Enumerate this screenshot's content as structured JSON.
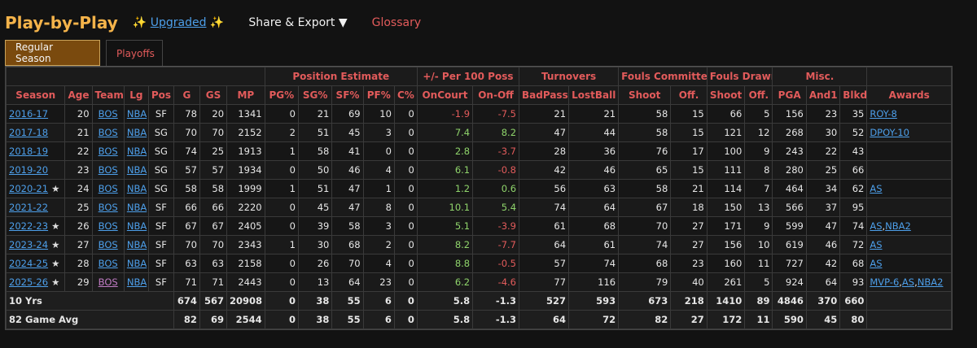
{
  "header": {
    "title": "Play-by-Play",
    "sparkle_left": "✨",
    "upgraded": "Upgraded",
    "sparkle_right": "✨",
    "share": "Share & Export ▼",
    "glossary": "Glossary"
  },
  "tabs": {
    "regular": "Regular Season",
    "playoffs": "Playoffs"
  },
  "groups": {
    "position": "Position Estimate",
    "plusminus": "+/- Per 100 Poss",
    "turnovers": "Turnovers",
    "fouls_committed": "Fouls Committed",
    "fouls_drawn": "Fouls Drawn",
    "misc": "Misc."
  },
  "columns": [
    "Season",
    "Age",
    "Team",
    "Lg",
    "Pos",
    "G",
    "GS",
    "MP",
    "PG%",
    "SG%",
    "SF%",
    "PF%",
    "C%",
    "OnCourt",
    "On-Off",
    "BadPass",
    "LostBall",
    "Shoot",
    "Off.",
    "Shoot",
    "Off.",
    "PGA",
    "And1",
    "Blkd",
    "Awards"
  ],
  "rows": [
    {
      "season": "2016-17",
      "star": "",
      "age": "20",
      "team": "BOS",
      "lg": "NBA",
      "pos": "SF",
      "g": "78",
      "gs": "20",
      "mp": "1341",
      "pg": "0",
      "sg": "21",
      "sf": "69",
      "pf": "10",
      "c": "0",
      "oncourt": "-1.9",
      "onoff": "-7.5",
      "badpass": "21",
      "lostball": "21",
      "fc_shoot": "58",
      "fc_off": "15",
      "fd_shoot": "66",
      "fd_off": "5",
      "pga": "156",
      "and1": "23",
      "blkd": "35",
      "awards": [
        "ROY-8"
      ]
    },
    {
      "season": "2017-18",
      "star": "",
      "age": "21",
      "team": "BOS",
      "lg": "NBA",
      "pos": "SG",
      "g": "70",
      "gs": "70",
      "mp": "2152",
      "pg": "2",
      "sg": "51",
      "sf": "45",
      "pf": "3",
      "c": "0",
      "oncourt": "7.4",
      "onoff": "8.2",
      "badpass": "47",
      "lostball": "44",
      "fc_shoot": "58",
      "fc_off": "15",
      "fd_shoot": "121",
      "fd_off": "12",
      "pga": "268",
      "and1": "30",
      "blkd": "52",
      "awards": [
        "DPOY-10"
      ]
    },
    {
      "season": "2018-19",
      "star": "",
      "age": "22",
      "team": "BOS",
      "lg": "NBA",
      "pos": "SG",
      "g": "74",
      "gs": "25",
      "mp": "1913",
      "pg": "1",
      "sg": "58",
      "sf": "41",
      "pf": "0",
      "c": "0",
      "oncourt": "2.8",
      "onoff": "-3.7",
      "badpass": "28",
      "lostball": "36",
      "fc_shoot": "76",
      "fc_off": "17",
      "fd_shoot": "100",
      "fd_off": "9",
      "pga": "243",
      "and1": "22",
      "blkd": "43",
      "awards": []
    },
    {
      "season": "2019-20",
      "star": "",
      "age": "23",
      "team": "BOS",
      "lg": "NBA",
      "pos": "SG",
      "g": "57",
      "gs": "57",
      "mp": "1934",
      "pg": "0",
      "sg": "50",
      "sf": "46",
      "pf": "4",
      "c": "0",
      "oncourt": "6.1",
      "onoff": "-0.8",
      "badpass": "42",
      "lostball": "46",
      "fc_shoot": "65",
      "fc_off": "15",
      "fd_shoot": "111",
      "fd_off": "8",
      "pga": "280",
      "and1": "25",
      "blkd": "66",
      "awards": []
    },
    {
      "season": "2020-21",
      "star": "★",
      "age": "24",
      "team": "BOS",
      "lg": "NBA",
      "pos": "SG",
      "g": "58",
      "gs": "58",
      "mp": "1999",
      "pg": "1",
      "sg": "51",
      "sf": "47",
      "pf": "1",
      "c": "0",
      "oncourt": "1.2",
      "onoff": "0.6",
      "badpass": "56",
      "lostball": "63",
      "fc_shoot": "58",
      "fc_off": "21",
      "fd_shoot": "114",
      "fd_off": "7",
      "pga": "464",
      "and1": "34",
      "blkd": "62",
      "awards": [
        "AS"
      ]
    },
    {
      "season": "2021-22",
      "star": "",
      "age": "25",
      "team": "BOS",
      "lg": "NBA",
      "pos": "SF",
      "g": "66",
      "gs": "66",
      "mp": "2220",
      "pg": "0",
      "sg": "45",
      "sf": "47",
      "pf": "8",
      "c": "0",
      "oncourt": "10.1",
      "onoff": "5.4",
      "badpass": "74",
      "lostball": "64",
      "fc_shoot": "67",
      "fc_off": "18",
      "fd_shoot": "150",
      "fd_off": "13",
      "pga": "566",
      "and1": "37",
      "blkd": "95",
      "awards": []
    },
    {
      "season": "2022-23",
      "star": "★",
      "age": "26",
      "team": "BOS",
      "lg": "NBA",
      "pos": "SF",
      "g": "67",
      "gs": "67",
      "mp": "2405",
      "pg": "0",
      "sg": "39",
      "sf": "58",
      "pf": "3",
      "c": "0",
      "oncourt": "5.1",
      "onoff": "-3.9",
      "badpass": "61",
      "lostball": "68",
      "fc_shoot": "70",
      "fc_off": "27",
      "fd_shoot": "171",
      "fd_off": "9",
      "pga": "599",
      "and1": "47",
      "blkd": "74",
      "awards": [
        "AS",
        "NBA2"
      ]
    },
    {
      "season": "2023-24",
      "star": "★",
      "age": "27",
      "team": "BOS",
      "lg": "NBA",
      "pos": "SF",
      "g": "70",
      "gs": "70",
      "mp": "2343",
      "pg": "1",
      "sg": "30",
      "sf": "68",
      "pf": "2",
      "c": "0",
      "oncourt": "8.2",
      "onoff": "-7.7",
      "badpass": "64",
      "lostball": "61",
      "fc_shoot": "74",
      "fc_off": "27",
      "fd_shoot": "156",
      "fd_off": "10",
      "pga": "619",
      "and1": "46",
      "blkd": "72",
      "awards": [
        "AS"
      ]
    },
    {
      "season": "2024-25",
      "star": "★",
      "age": "28",
      "team": "BOS",
      "lg": "NBA",
      "pos": "SF",
      "g": "63",
      "gs": "63",
      "mp": "2158",
      "pg": "0",
      "sg": "26",
      "sf": "70",
      "pf": "4",
      "c": "0",
      "oncourt": "8.8",
      "onoff": "-0.5",
      "badpass": "57",
      "lostball": "74",
      "fc_shoot": "68",
      "fc_off": "23",
      "fd_shoot": "160",
      "fd_off": "11",
      "pga": "727",
      "and1": "42",
      "blkd": "68",
      "awards": [
        "AS"
      ]
    },
    {
      "season": "2025-26",
      "star": "★",
      "age": "29",
      "team": "BOS",
      "lg": "NBA",
      "pos": "SF",
      "g": "71",
      "gs": "71",
      "mp": "2443",
      "pg": "0",
      "sg": "13",
      "sf": "64",
      "pf": "23",
      "c": "0",
      "oncourt": "6.2",
      "onoff": "-4.6",
      "badpass": "77",
      "lostball": "116",
      "fc_shoot": "79",
      "fc_off": "40",
      "fd_shoot": "261",
      "fd_off": "5",
      "pga": "924",
      "and1": "64",
      "blkd": "93",
      "awards": [
        "MVP-6",
        "AS",
        "NBA2"
      ]
    }
  ],
  "totals": [
    {
      "label": "10 Yrs",
      "g": "674",
      "gs": "567",
      "mp": "20908",
      "pg": "0",
      "sg": "38",
      "sf": "55",
      "pf": "6",
      "c": "0",
      "oncourt": "5.8",
      "onoff": "-1.3",
      "badpass": "527",
      "lostball": "593",
      "fc_shoot": "673",
      "fc_off": "218",
      "fd_shoot": "1410",
      "fd_off": "89",
      "pga": "4846",
      "and1": "370",
      "blkd": "660"
    },
    {
      "label": "82 Game Avg",
      "g": "82",
      "gs": "69",
      "mp": "2544",
      "pg": "0",
      "sg": "38",
      "sf": "55",
      "pf": "6",
      "c": "0",
      "oncourt": "5.8",
      "onoff": "-1.3",
      "badpass": "64",
      "lostball": "72",
      "fc_shoot": "82",
      "fc_off": "27",
      "fd_shoot": "172",
      "fd_off": "11",
      "pga": "590",
      "and1": "45",
      "blkd": "80"
    }
  ],
  "colors": {
    "accent": "#f4b34a",
    "header_red": "#e25b5b",
    "positive": "#8fd46b",
    "link": "#4d9fea",
    "tab_active": "#7a4a0e"
  }
}
